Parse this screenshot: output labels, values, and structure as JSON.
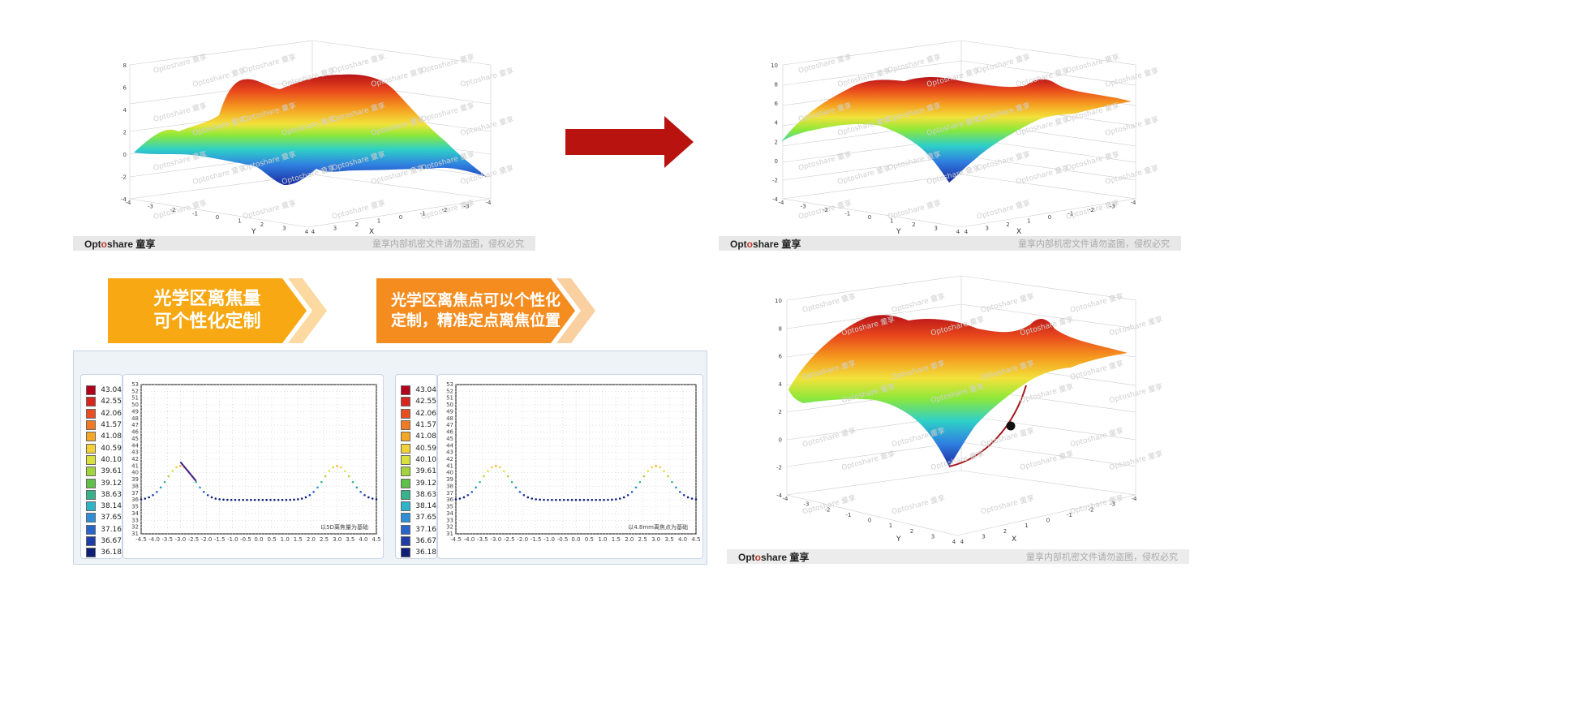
{
  "plots": {
    "top_left": {
      "z_ticks": [
        "8",
        "6",
        "4",
        "2",
        "0",
        "-2",
        "-4"
      ],
      "y_ticks": [
        "-4",
        "-3",
        "-2",
        "-1",
        "0",
        "1",
        "2",
        "3",
        "4"
      ],
      "x_ticks": [
        "4",
        "3",
        "2",
        "1",
        "0",
        "-1",
        "-2",
        "-3",
        "-4"
      ],
      "y_label": "Y",
      "x_label": "X"
    },
    "top_right": {
      "z_ticks": [
        "10",
        "8",
        "6",
        "4",
        "2",
        "0",
        "-2",
        "-4"
      ],
      "y_ticks": [
        "-4",
        "-3",
        "-2",
        "-1",
        "0",
        "1",
        "2",
        "3",
        "4"
      ],
      "x_ticks": [
        "4",
        "3",
        "2",
        "1",
        "0",
        "-1",
        "-2",
        "-3",
        "-4"
      ],
      "y_label": "Y",
      "x_label": "X"
    },
    "bottom_right": {
      "z_ticks": [
        "10",
        "8",
        "6",
        "4",
        "2",
        "0",
        "-2",
        "-4"
      ],
      "y_ticks": [
        "-4",
        "-3",
        "-2",
        "-1",
        "0",
        "1",
        "2",
        "3",
        "4"
      ],
      "x_ticks": [
        "4",
        "3",
        "2",
        "1",
        "0",
        "-1",
        "-2",
        "-3",
        "-4"
      ],
      "y_label": "Y",
      "x_label": "X"
    },
    "watermark_text": "Optoshare 童享"
  },
  "footers": {
    "brand_prefix": "Opt",
    "brand_o": "o",
    "brand_suffix": "share 童享",
    "notice": "童享内部机密文件请勿盗图，侵权必究"
  },
  "banners": {
    "left": {
      "line1": "光学区离焦量",
      "line2": "可个性化定制"
    },
    "right": {
      "line1": "光学区离焦点可以个性化",
      "line2": "定制，精准定点离焦位置"
    }
  },
  "legend_values": [
    "43.04",
    "42.55",
    "42.06",
    "41.57",
    "41.08",
    "40.59",
    "40.10",
    "39.61",
    "39.12",
    "38.63",
    "38.14",
    "37.65",
    "37.16",
    "36.67",
    "36.18"
  ],
  "legend_colors": [
    "#b3001b",
    "#d7261e",
    "#e94e22",
    "#f07a24",
    "#f5a623",
    "#f3cf3a",
    "#d9e23c",
    "#a4d43c",
    "#5fc04a",
    "#36b38a",
    "#2fb3c9",
    "#2e8fd6",
    "#2a63c9",
    "#1f3da8",
    "#0f1f78"
  ],
  "profile": {
    "left_caption": "以5D离焦量为基础",
    "right_caption": "以4.8mm离焦点为基础",
    "y_ticks": [
      "53",
      "52",
      "51",
      "50",
      "49",
      "48",
      "47",
      "46",
      "45",
      "44",
      "43",
      "42",
      "41",
      "40",
      "39",
      "38",
      "37",
      "36",
      "35",
      "34",
      "33",
      "32",
      "31"
    ],
    "x_ticks": [
      "-4.5",
      "-4.0",
      "-3.5",
      "-3.0",
      "-2.5",
      "-2.0",
      "-1.5",
      "-1.0",
      "-0.5",
      "0.0",
      "0.5",
      "1.0",
      "1.5",
      "2.0",
      "2.5",
      "3.0",
      "3.5",
      "4.0",
      "4.5"
    ]
  }
}
